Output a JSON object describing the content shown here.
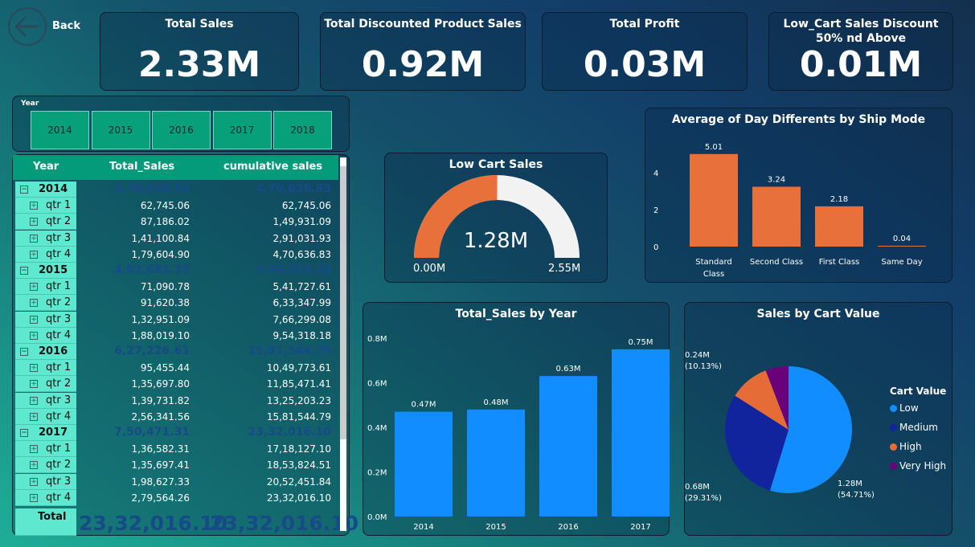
{
  "nav": {
    "back_label": "Back"
  },
  "kpis": [
    {
      "title": "Total Sales",
      "value": "2.33M"
    },
    {
      "title": "Total Discounted Product Sales",
      "value": "0.92M"
    },
    {
      "title": "Total Profit",
      "value": "0.03M"
    },
    {
      "title": "Low_Cart Sales Discount 50% nd Above",
      "value": "0.01M"
    }
  ],
  "slicer": {
    "label": "Year",
    "options": [
      "2014",
      "2015",
      "2016",
      "2017",
      "2018"
    ]
  },
  "table": {
    "headers": [
      "Year",
      "Total_Sales",
      "cumulative sales"
    ],
    "rows": [
      {
        "level": "year",
        "label": "2014",
        "sales": "4,70,636.83",
        "cum": "4,70,636.83"
      },
      {
        "level": "qtr",
        "label": "qtr 1",
        "sales": "62,745.06",
        "cum": "62,745.06"
      },
      {
        "level": "qtr",
        "label": "qtr 2",
        "sales": "87,186.02",
        "cum": "1,49,931.09"
      },
      {
        "level": "qtr",
        "label": "qtr 3",
        "sales": "1,41,100.84",
        "cum": "2,91,031.93"
      },
      {
        "level": "qtr",
        "label": "qtr 4",
        "sales": "1,79,604.90",
        "cum": "4,70,636.83"
      },
      {
        "level": "year",
        "label": "2015",
        "sales": "4,83,681.35",
        "cum": "9,54,318.18"
      },
      {
        "level": "qtr",
        "label": "qtr 1",
        "sales": "71,090.78",
        "cum": "5,41,727.61"
      },
      {
        "level": "qtr",
        "label": "qtr 2",
        "sales": "91,620.38",
        "cum": "6,33,347.99"
      },
      {
        "level": "qtr",
        "label": "qtr 3",
        "sales": "1,32,951.09",
        "cum": "7,66,299.08"
      },
      {
        "level": "qtr",
        "label": "qtr 4",
        "sales": "1,88,019.10",
        "cum": "9,54,318.18"
      },
      {
        "level": "year",
        "label": "2016",
        "sales": "6,27,226.61",
        "cum": "15,81,544.79"
      },
      {
        "level": "qtr",
        "label": "qtr 1",
        "sales": "95,455.44",
        "cum": "10,49,773.61"
      },
      {
        "level": "qtr",
        "label": "qtr 2",
        "sales": "1,35,697.80",
        "cum": "11,85,471.41"
      },
      {
        "level": "qtr",
        "label": "qtr 3",
        "sales": "1,39,731.82",
        "cum": "13,25,203.23"
      },
      {
        "level": "qtr",
        "label": "qtr 4",
        "sales": "2,56,341.56",
        "cum": "15,81,544.79"
      },
      {
        "level": "year",
        "label": "2017",
        "sales": "7,50,471.31",
        "cum": "23,32,016.10"
      },
      {
        "level": "qtr",
        "label": "qtr 1",
        "sales": "1,36,582.31",
        "cum": "17,18,127.10"
      },
      {
        "level": "qtr",
        "label": "qtr 2",
        "sales": "1,35,697.41",
        "cum": "18,53,824.51"
      },
      {
        "level": "qtr",
        "label": "qtr 3",
        "sales": "1,98,627.33",
        "cum": "20,52,451.84"
      },
      {
        "level": "qtr",
        "label": "qtr 4",
        "sales": "2,79,564.26",
        "cum": "23,32,016.10"
      }
    ],
    "total": {
      "label": "Total",
      "sales": "23,32,016.10",
      "cum": "23,32,016.10"
    }
  },
  "gauge": {
    "title": "Low Cart Sales",
    "value": 1.28,
    "value_label": "1.28M",
    "min_label": "0.00M",
    "max_label": "2.55M",
    "min": 0,
    "max": 2.55,
    "fill_color": "#e8703a",
    "track_color": "#f2f2f2"
  },
  "chart_data": [
    {
      "type": "bar",
      "title": "Average of Day Differents by Ship Mode",
      "categories": [
        "Standard Class",
        "Second Class",
        "First Class",
        "Same Day"
      ],
      "values": [
        5.01,
        3.24,
        2.18,
        0.04
      ],
      "data_labels": [
        "5.01",
        "3.24",
        "2.18",
        "0.04"
      ],
      "ylim": [
        0,
        6
      ],
      "yticks": [
        "0",
        "2",
        "4"
      ],
      "color": "#e8703a",
      "grid": false
    },
    {
      "type": "bar",
      "title": "Total_Sales by Year",
      "categories": [
        "2014",
        "2015",
        "2016",
        "2017"
      ],
      "values": [
        0.47,
        0.48,
        0.63,
        0.75
      ],
      "data_labels": [
        "0.47M",
        "0.48M",
        "0.63M",
        "0.75M"
      ],
      "ylim": [
        0,
        0.8
      ],
      "yticks": [
        "0.0M",
        "0.2M",
        "0.4M",
        "0.6M",
        "0.8M"
      ],
      "color": "#118dff",
      "grid": false
    },
    {
      "type": "pie",
      "title": "Sales by Cart Value",
      "legend_title": "Cart Value",
      "legend_position": "right",
      "slices": [
        {
          "name": "Low",
          "percent": 54.71,
          "label": "1.28M",
          "pct_label": "(54.71%)",
          "color": "#118dff"
        },
        {
          "name": "Medium",
          "percent": 29.31,
          "label": "0.68M",
          "pct_label": "(29.31%)",
          "color": "#12239e"
        },
        {
          "name": "High",
          "percent": 10.13,
          "label": "0.24M",
          "pct_label": "(10.13%)",
          "color": "#e66c37"
        },
        {
          "name": "Very High",
          "percent": 5.85,
          "label": "",
          "pct_label": "",
          "color": "#6b007b"
        }
      ]
    }
  ]
}
